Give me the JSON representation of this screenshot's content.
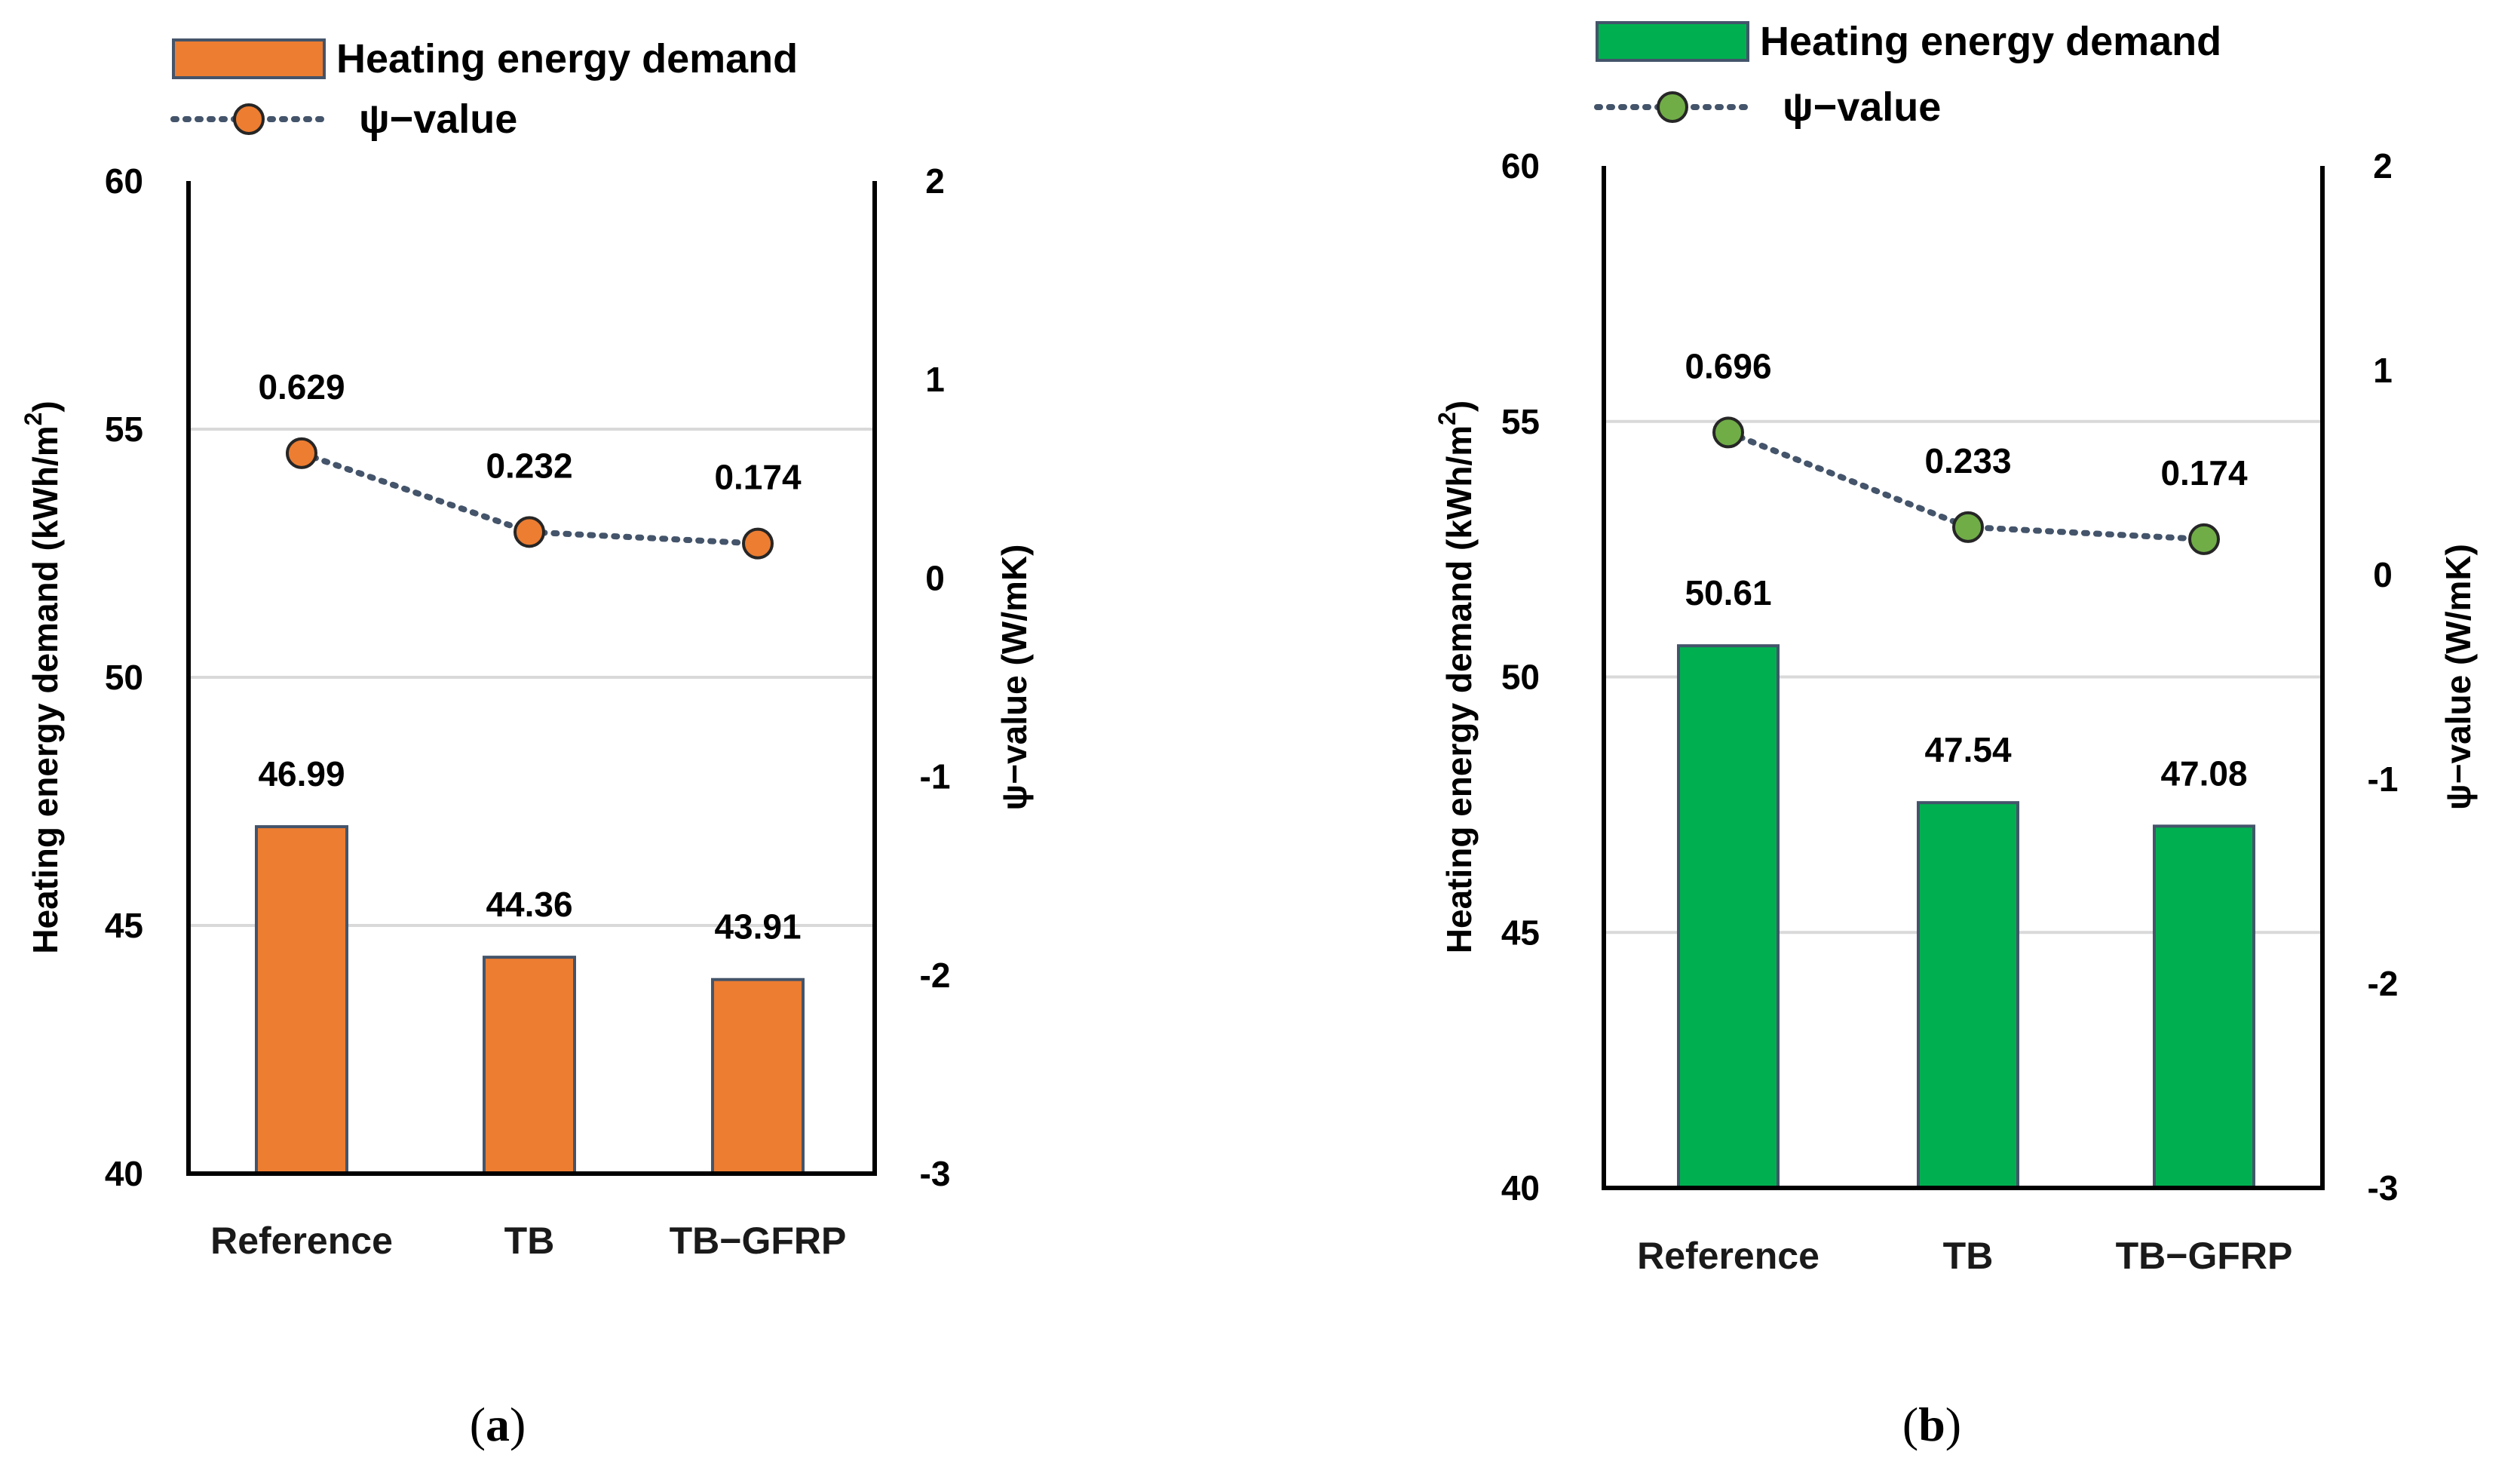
{
  "chart_data": [
    {
      "type": "bar+line",
      "panel": "a",
      "caption": "(a)",
      "caption_parts": {
        "open": "(",
        "letter": "a",
        "close": ")"
      },
      "categories": [
        "Reference",
        "TB",
        "TB−GFRP"
      ],
      "bar_series": {
        "name": "Heating energy demand",
        "values": [
          46.99,
          44.36,
          43.91
        ],
        "labels": [
          "46.99",
          "44.36",
          "43.91"
        ],
        "color": "#ED7D31"
      },
      "line_series": {
        "name": "ψ−value",
        "values": [
          0.629,
          0.232,
          0.174
        ],
        "labels": [
          "0.629",
          "0.232",
          "0.174"
        ],
        "marker_color": "#ED7D31",
        "line_color": "#44546A"
      },
      "ylabel": "Heating energy demand (kWh/m",
      "ylabel_sup": "2",
      "ylabel_close": ")",
      "y2label": "ψ−value (W/mK)",
      "ylim": [
        40,
        60
      ],
      "yticks": [
        40,
        45,
        50,
        55,
        60
      ],
      "y2lim": [
        -3,
        2
      ],
      "y2ticks": [
        -3,
        -2,
        -1,
        0,
        1,
        2
      ],
      "y2tick_labels": [
        "-3",
        "-2",
        "-1",
        "0",
        "1",
        "2"
      ],
      "gridlines": [
        45,
        50,
        55
      ]
    },
    {
      "type": "bar+line",
      "panel": "b",
      "caption": "(b)",
      "caption_parts": {
        "open": "(",
        "letter": "b",
        "close": ")"
      },
      "categories": [
        "Reference",
        "TB",
        "TB−GFRP"
      ],
      "bar_series": {
        "name": "Heating energy demand",
        "values": [
          50.61,
          47.54,
          47.08
        ],
        "labels": [
          "50.61",
          "47.54",
          "47.08"
        ],
        "color": "#00B050"
      },
      "line_series": {
        "name": "ψ−value",
        "values": [
          0.696,
          0.233,
          0.174
        ],
        "labels": [
          "0.696",
          "0.233",
          "0.174"
        ],
        "marker_color": "#70AD47",
        "line_color": "#44546A"
      },
      "ylabel": "Heating energy demand (kWh/m",
      "ylabel_sup": "2",
      "ylabel_close": ")",
      "y2label": "ψ−value (W/mK)",
      "ylim": [
        40,
        60
      ],
      "yticks": [
        40,
        45,
        50,
        55,
        60
      ],
      "y2lim": [
        -3,
        2
      ],
      "y2ticks": [
        -3,
        -2,
        -1,
        0,
        1,
        2
      ],
      "y2tick_labels": [
        "-3",
        "-2",
        "-1",
        "0",
        "1",
        "2"
      ],
      "gridlines": [
        45,
        50,
        55
      ]
    }
  ]
}
